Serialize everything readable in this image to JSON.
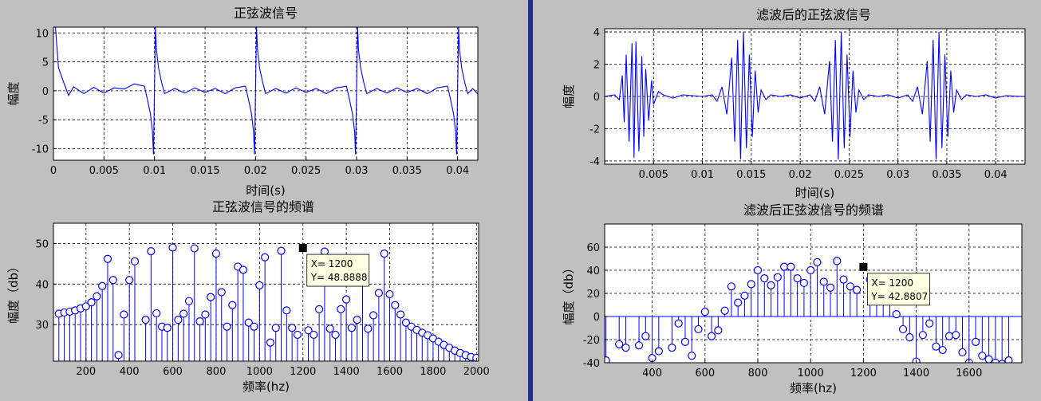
{
  "colors": {
    "figure_bg": "#c0c0c0",
    "axes_bg": "#ffffff",
    "line": "#0000ff",
    "divider": "#1e2f8c"
  },
  "chart_data": [
    {
      "id": "tl",
      "type": "line",
      "title": "正弦波信号",
      "xlabel": "时间(s)",
      "ylabel": "幅度",
      "xlim": [
        0,
        0.042
      ],
      "ylim": [
        -12,
        11
      ],
      "xticks": [
        0,
        0.005,
        0.01,
        0.015,
        0.02,
        0.025,
        0.03,
        0.035,
        0.04
      ],
      "xtick_labels": [
        "0",
        "0.005",
        "0.01",
        "0.015",
        "0.02",
        "0.025",
        "0.03",
        "0.035",
        "0.04"
      ],
      "yticks": [
        -10,
        -5,
        0,
        5,
        10
      ],
      "ytick_labels": [
        "-10",
        "-5",
        "0",
        "5",
        "10"
      ],
      "grid": true,
      "series": [
        {
          "style": "line",
          "x": [
            0,
            0.0002,
            0.0005,
            0.001,
            0.0015,
            0.002,
            0.003,
            0.004,
            0.005,
            0.006,
            0.007,
            0.008,
            0.009,
            0.0093,
            0.0096,
            0.0098,
            0.0099,
            0.0101,
            0.0102,
            0.0104,
            0.0107,
            0.011,
            0.012,
            0.013,
            0.014,
            0.015,
            0.016,
            0.017,
            0.018,
            0.019,
            0.0193,
            0.0196,
            0.0198,
            0.0199,
            0.0201,
            0.0202,
            0.0204,
            0.0207,
            0.021,
            0.022,
            0.023,
            0.024,
            0.025,
            0.026,
            0.027,
            0.028,
            0.029,
            0.0293,
            0.0296,
            0.0298,
            0.0299,
            0.0301,
            0.0302,
            0.0304,
            0.0307,
            0.031,
            0.032,
            0.033,
            0.034,
            0.035,
            0.036,
            0.037,
            0.038,
            0.039,
            0.0393,
            0.0396,
            0.0398,
            0.0399,
            0.0401,
            0.0402,
            0.0404,
            0.0407,
            0.041,
            0.0415,
            0.042
          ],
          "y": [
            11,
            11,
            4,
            1.5,
            -0.8,
            0.7,
            -0.5,
            0.6,
            -0.4,
            0.5,
            0.3,
            1.2,
            0.8,
            -1.5,
            -4,
            -7,
            -11,
            11,
            7,
            4,
            1.5,
            -0.5,
            0.4,
            -0.4,
            0.5,
            -0.3,
            0.4,
            -0.5,
            0.5,
            0.8,
            -1.5,
            -4,
            -7,
            -11,
            11,
            7,
            4,
            1.5,
            -0.5,
            0.4,
            -0.4,
            0.5,
            -0.3,
            0.4,
            -0.5,
            0.5,
            0.8,
            -1.5,
            -4,
            -7,
            -11,
            11,
            7,
            4,
            1.5,
            -0.5,
            0.4,
            -0.4,
            0.5,
            -0.3,
            0.4,
            -0.5,
            0.5,
            0.8,
            -1.5,
            -4,
            -7,
            -11,
            11,
            7,
            4,
            1.5,
            -0.5,
            0.4,
            -0.6
          ]
        }
      ]
    },
    {
      "id": "tr",
      "type": "line",
      "title": "滤波后的正弦波信号",
      "xlabel": "时间(s)",
      "ylabel": "幅度",
      "xlim": [
        0,
        0.043
      ],
      "ylim": [
        -4.2,
        4.2
      ],
      "xticks": [
        0.005,
        0.01,
        0.015,
        0.02,
        0.025,
        0.03,
        0.035,
        0.04
      ],
      "xtick_labels": [
        "0.005",
        "0.01",
        "0.015",
        "0.02",
        "0.025",
        "0.03",
        "0.035",
        "0.04"
      ],
      "yticks": [
        -4,
        -2,
        0,
        2,
        4
      ],
      "ytick_labels": [
        "-4",
        "-2",
        "0",
        "2",
        "4"
      ],
      "grid": true,
      "series": [
        {
          "style": "line",
          "x": [
            0,
            0.001,
            0.0015,
            0.0018,
            0.002,
            0.0022,
            0.0025,
            0.0028,
            0.003,
            0.0032,
            0.0035,
            0.0038,
            0.004,
            0.0042,
            0.0045,
            0.0048,
            0.005,
            0.0055,
            0.006,
            0.007,
            0.008,
            0.009,
            0.01,
            0.011,
            0.0115,
            0.012,
            0.0125,
            0.013,
            0.0133,
            0.0136,
            0.0139,
            0.0142,
            0.0145,
            0.0148,
            0.0151,
            0.0154,
            0.0157,
            0.016,
            0.0165,
            0.017,
            0.018,
            0.019,
            0.02,
            0.021,
            0.0215,
            0.022,
            0.0225,
            0.023,
            0.0233,
            0.0236,
            0.0239,
            0.0242,
            0.0245,
            0.0248,
            0.0251,
            0.0254,
            0.0257,
            0.026,
            0.0265,
            0.027,
            0.028,
            0.029,
            0.03,
            0.031,
            0.0315,
            0.032,
            0.0325,
            0.033,
            0.0333,
            0.0336,
            0.0339,
            0.0342,
            0.0345,
            0.0348,
            0.0351,
            0.0354,
            0.0357,
            0.036,
            0.0365,
            0.037,
            0.038,
            0.039,
            0.04,
            0.041,
            0.043
          ],
          "y": [
            0,
            0.1,
            -0.2,
            1.3,
            -1.6,
            2.6,
            -2.8,
            3.3,
            -3.8,
            3.4,
            -3.4,
            2.5,
            -2.5,
            1.7,
            -1.5,
            1.0,
            -0.5,
            0.3,
            0.1,
            -0.1,
            0.1,
            0.05,
            0,
            0.1,
            -0.3,
            0.6,
            -1.1,
            2.4,
            -2.8,
            3.5,
            -3.9,
            4,
            -3.2,
            2.6,
            -2.5,
            1.6,
            -1.0,
            0.4,
            -0.2,
            0.1,
            0,
            0.1,
            -0.1,
            0.1,
            -0.3,
            0.6,
            -1.1,
            2.2,
            -2.8,
            3.5,
            -3.9,
            4,
            -3.2,
            2.6,
            -2.5,
            1.6,
            -1.0,
            0.4,
            -0.2,
            0.1,
            0,
            0.1,
            -0.1,
            0.1,
            -0.3,
            0.6,
            -1.1,
            2.2,
            -2.8,
            3.5,
            -3.9,
            4,
            -3.2,
            2.6,
            -2.5,
            1.6,
            -1.0,
            0.4,
            -0.2,
            0.1,
            0,
            0.1,
            -0.1,
            0.05,
            0
          ]
        }
      ]
    },
    {
      "id": "bl",
      "type": "stem",
      "title": "正弦波信号的频谱",
      "xlabel": "频率(hz)",
      "ylabel": "幅度（db）",
      "xlim": [
        50,
        2010
      ],
      "ylim": [
        21,
        55
      ],
      "baseline": 21,
      "xticks": [
        200,
        400,
        600,
        800,
        1000,
        1200,
        1400,
        1600,
        1800,
        2000
      ],
      "xtick_labels": [
        "200",
        "400",
        "600",
        "800",
        "1000",
        "1200",
        "1400",
        "1600",
        "1800",
        "2000"
      ],
      "yticks": [
        30,
        40,
        50
      ],
      "ytick_labels": [
        "30",
        "40",
        "50"
      ],
      "grid": true,
      "datatip": {
        "x": 1200,
        "y": 48.8888,
        "x_text": "X= 1200",
        "y_text": "Y= 48.8888"
      },
      "series": [
        {
          "style": "stem",
          "x": [
            75,
            100,
            125,
            150,
            175,
            200,
            225,
            250,
            275,
            300,
            325,
            350,
            375,
            400,
            425,
            475,
            500,
            525,
            550,
            575,
            600,
            625,
            650,
            675,
            700,
            725,
            750,
            775,
            800,
            825,
            850,
            875,
            900,
            925,
            950,
            975,
            1000,
            1025,
            1050,
            1075,
            1100,
            1125,
            1150,
            1175,
            1225,
            1250,
            1275,
            1300,
            1325,
            1350,
            1375,
            1400,
            1425,
            1450,
            1475,
            1500,
            1525,
            1550,
            1575,
            1600,
            1625,
            1650,
            1675,
            1700,
            1725,
            1750,
            1775,
            1800,
            1825,
            1850,
            1875,
            1900,
            1925,
            1950,
            1975,
            2000
          ],
          "y": [
            32.7,
            33,
            33.2,
            33.5,
            34,
            34.5,
            35.5,
            37,
            39.5,
            46.2,
            41,
            22.5,
            32.5,
            41,
            45.6,
            31.2,
            48.1,
            32.8,
            29.5,
            29.2,
            49,
            31.2,
            32.7,
            35.8,
            48.8,
            30.8,
            32.5,
            36.8,
            47.5,
            38,
            29.5,
            34.8,
            44.3,
            43.5,
            30.5,
            29.5,
            39.7,
            46.6,
            25.6,
            29.2,
            48.2,
            33.5,
            29.2,
            27.5,
            28.6,
            27.5,
            33.8,
            48,
            29,
            27.5,
            33.8,
            36.2,
            29.2,
            31.2,
            42.5,
            29,
            32.3,
            37.8,
            47.5,
            37.5,
            34.8,
            32.5,
            30.5,
            29.5,
            28.7,
            28,
            27.4,
            26.6,
            25.8,
            25,
            24.3,
            23.6,
            23,
            22.5,
            22,
            21.8
          ]
        }
      ]
    },
    {
      "id": "br",
      "type": "stem",
      "title": "滤波后正弦波信号的频谱",
      "xlabel": "频率(hz)",
      "ylabel": "幅度（db）",
      "xlim": [
        220,
        1800
      ],
      "ylim": [
        -40,
        80
      ],
      "baseline": 0,
      "xticks": [
        400,
        600,
        800,
        1000,
        1200,
        1400,
        1600
      ],
      "xtick_labels": [
        "400",
        "600",
        "800",
        "1000",
        "1200",
        "1400",
        "1600"
      ],
      "yticks": [
        -40,
        -20,
        0,
        20,
        40,
        60
      ],
      "ytick_labels": [
        "-40",
        "-20",
        "0",
        "20",
        "40",
        "60"
      ],
      "grid": true,
      "datatip": {
        "x": 1200,
        "y": 42.8807,
        "x_text": "X= 1200",
        "y_text": "Y= 42.8807"
      },
      "series": [
        {
          "style": "stem",
          "x": [
            225,
            275,
            300,
            350,
            375,
            400,
            425,
            475,
            500,
            525,
            550,
            575,
            600,
            625,
            650,
            675,
            700,
            725,
            750,
            775,
            800,
            825,
            850,
            875,
            900,
            925,
            950,
            975,
            1000,
            1025,
            1050,
            1075,
            1100,
            1125,
            1150,
            1175,
            1225,
            1250,
            1275,
            1300,
            1325,
            1350,
            1375,
            1400,
            1425,
            1450,
            1475,
            1500,
            1525,
            1550,
            1575,
            1600,
            1625,
            1650,
            1675,
            1700,
            1725,
            1750
          ],
          "y": [
            -38,
            -24,
            -27,
            -25,
            -17,
            -36,
            -30,
            -27,
            -6,
            -22,
            -34,
            -11,
            4,
            -17,
            -12,
            5,
            26,
            12,
            18,
            28,
            40,
            33,
            27,
            34,
            43,
            43,
            33,
            29,
            40,
            47,
            30,
            25,
            48,
            32,
            26,
            23,
            32,
            24,
            28,
            20,
            2,
            -11,
            -18,
            -39,
            -16,
            -6,
            -26,
            -29,
            -17,
            -16,
            -31,
            -40,
            -22,
            -34,
            -37,
            -40,
            -41,
            -38
          ]
        }
      ]
    }
  ]
}
